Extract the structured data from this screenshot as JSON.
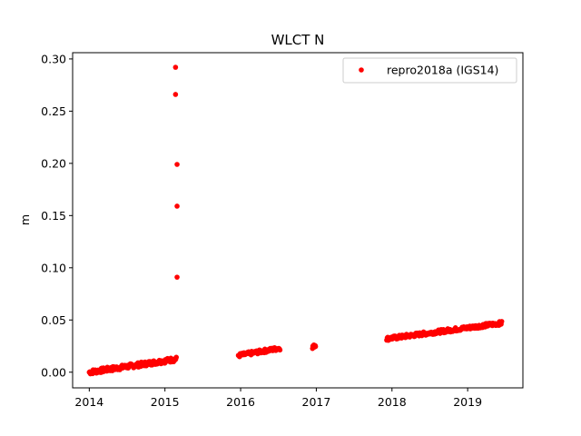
{
  "chart_data": {
    "type": "scatter",
    "title": "WLCT N",
    "xlabel": "",
    "ylabel": "m",
    "xlim": [
      2013.78,
      2019.73
    ],
    "ylim": [
      -0.015,
      0.306
    ],
    "xticks": [
      2014,
      2015,
      2016,
      2017,
      2018,
      2019
    ],
    "yticks": [
      0.0,
      0.05,
      0.1,
      0.15,
      0.2,
      0.25,
      0.3
    ],
    "ytick_labels": [
      "0.00",
      "0.05",
      "0.10",
      "0.15",
      "0.20",
      "0.25",
      "0.30"
    ],
    "grid": false,
    "legend": {
      "position": "top-right"
    },
    "series": [
      {
        "name": "repro2018a (IGS14)",
        "color": "#ff0000",
        "marker": "circle",
        "segments": [
          {
            "x_start": 2014.0,
            "x_end": 2015.15,
            "y_start": 0.0,
            "y_end": 0.0125,
            "count": 160,
            "spread": 0.0022
          },
          {
            "x_start": 2015.97,
            "x_end": 2016.52,
            "y_start": 0.016,
            "y_end": 0.023,
            "count": 70,
            "spread": 0.0018
          },
          {
            "x_start": 2016.95,
            "x_end": 2016.99,
            "y_start": 0.024,
            "y_end": 0.026,
            "count": 10,
            "spread": 0.0015
          },
          {
            "x_start": 2017.93,
            "x_end": 2019.45,
            "y_start": 0.032,
            "y_end": 0.047,
            "count": 210,
            "spread": 0.0018
          }
        ],
        "outliers": [
          {
            "x": 2015.14,
            "y": 0.292
          },
          {
            "x": 2015.14,
            "y": 0.266
          },
          {
            "x": 2015.16,
            "y": 0.199
          },
          {
            "x": 2015.16,
            "y": 0.159
          },
          {
            "x": 2015.16,
            "y": 0.091
          }
        ]
      }
    ]
  }
}
